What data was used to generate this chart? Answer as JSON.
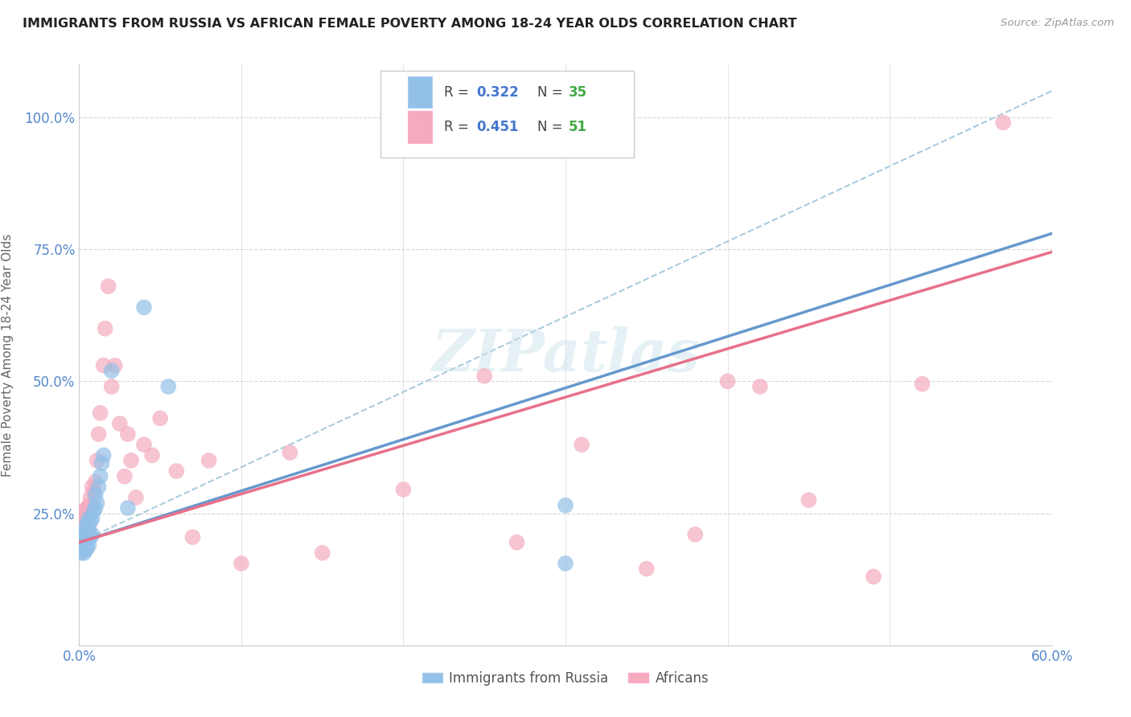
{
  "title": "IMMIGRANTS FROM RUSSIA VS AFRICAN FEMALE POVERTY AMONG 18-24 YEAR OLDS CORRELATION CHART",
  "source": "Source: ZipAtlas.com",
  "ylabel": "Female Poverty Among 18-24 Year Olds",
  "x_min": 0.0,
  "x_max": 0.6,
  "y_min": 0.0,
  "y_max": 1.1,
  "x_ticks": [
    0.0,
    0.1,
    0.2,
    0.3,
    0.4,
    0.5,
    0.6
  ],
  "x_tick_labels": [
    "0.0%",
    "",
    "",
    "",
    "",
    "",
    "60.0%"
  ],
  "y_ticks": [
    0.0,
    0.25,
    0.5,
    0.75,
    1.0
  ],
  "y_tick_labels": [
    "",
    "25.0%",
    "50.0%",
    "75.0%",
    "100.0%"
  ],
  "legend_R_blue": "0.322",
  "legend_N_blue": "35",
  "legend_R_pink": "0.451",
  "legend_N_pink": "51",
  "label_blue": "Immigrants from Russia",
  "label_pink": "Africans",
  "color_blue": "#92C0E8",
  "color_pink": "#F4ABBE",
  "color_line_blue": "#6699CC",
  "color_line_pink": "#E8708A",
  "color_dashed": "#AACCDD",
  "watermark_text": "ZIPatlas",
  "blue_scatter_x": [
    0.001,
    0.001,
    0.002,
    0.002,
    0.002,
    0.003,
    0.003,
    0.003,
    0.004,
    0.004,
    0.004,
    0.005,
    0.005,
    0.005,
    0.006,
    0.006,
    0.006,
    0.007,
    0.007,
    0.008,
    0.008,
    0.009,
    0.01,
    0.01,
    0.011,
    0.012,
    0.013,
    0.014,
    0.015,
    0.03,
    0.04,
    0.055,
    0.3,
    0.3,
    0.02
  ],
  "blue_scatter_y": [
    0.175,
    0.185,
    0.19,
    0.2,
    0.21,
    0.175,
    0.2,
    0.215,
    0.18,
    0.21,
    0.225,
    0.185,
    0.215,
    0.23,
    0.19,
    0.215,
    0.24,
    0.205,
    0.235,
    0.21,
    0.24,
    0.255,
    0.26,
    0.285,
    0.27,
    0.3,
    0.32,
    0.345,
    0.36,
    0.26,
    0.64,
    0.49,
    0.265,
    0.155,
    0.52
  ],
  "pink_scatter_x": [
    0.001,
    0.002,
    0.002,
    0.003,
    0.003,
    0.004,
    0.004,
    0.005,
    0.005,
    0.006,
    0.006,
    0.007,
    0.007,
    0.008,
    0.008,
    0.009,
    0.01,
    0.011,
    0.012,
    0.013,
    0.015,
    0.016,
    0.018,
    0.02,
    0.022,
    0.025,
    0.028,
    0.03,
    0.032,
    0.035,
    0.04,
    0.045,
    0.05,
    0.06,
    0.07,
    0.08,
    0.1,
    0.13,
    0.15,
    0.2,
    0.25,
    0.27,
    0.31,
    0.35,
    0.38,
    0.4,
    0.42,
    0.45,
    0.49,
    0.52,
    0.57
  ],
  "pink_scatter_y": [
    0.215,
    0.225,
    0.24,
    0.22,
    0.255,
    0.225,
    0.25,
    0.235,
    0.26,
    0.225,
    0.265,
    0.25,
    0.28,
    0.265,
    0.3,
    0.29,
    0.31,
    0.35,
    0.4,
    0.44,
    0.53,
    0.6,
    0.68,
    0.49,
    0.53,
    0.42,
    0.32,
    0.4,
    0.35,
    0.28,
    0.38,
    0.36,
    0.43,
    0.33,
    0.205,
    0.35,
    0.155,
    0.365,
    0.175,
    0.295,
    0.51,
    0.195,
    0.38,
    0.145,
    0.21,
    0.5,
    0.49,
    0.275,
    0.13,
    0.495,
    0.99
  ],
  "blue_line_x0": 0.0,
  "blue_line_y0": 0.195,
  "blue_line_x1": 0.6,
  "blue_line_y1": 0.78,
  "pink_line_x0": 0.0,
  "pink_line_y0": 0.195,
  "pink_line_x1": 0.6,
  "pink_line_y1": 0.745,
  "dashed_line_x0": 0.0,
  "dashed_line_y0": 0.195,
  "dashed_line_x1": 0.6,
  "dashed_line_y1": 1.05
}
